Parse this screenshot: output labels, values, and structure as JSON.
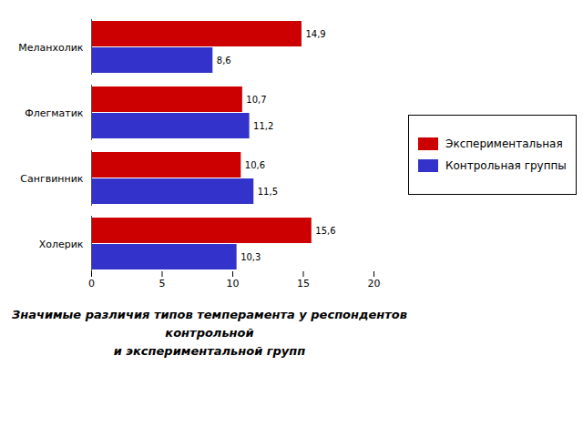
{
  "chart_data": {
    "type": "bar",
    "orientation": "horizontal",
    "categories": [
      "Холерик",
      "Сангвинник",
      "Флегматик",
      "Меланхолик"
    ],
    "series": [
      {
        "name": "Экспериментальная",
        "color": "#cc0000",
        "values": [
          15.6,
          10.6,
          10.7,
          14.9
        ],
        "value_labels": [
          "15,6",
          "10,6",
          "10,7",
          "14,9"
        ]
      },
      {
        "name": "Контрольная группы",
        "color": "#3333cc",
        "values": [
          10.3,
          11.5,
          11.2,
          8.6
        ],
        "value_labels": [
          "10,3",
          "11,5",
          "11,2",
          "8,6"
        ]
      }
    ],
    "xlim": [
      0,
      20
    ],
    "xticks": [
      0,
      5,
      10,
      15,
      20
    ],
    "data_labels": true,
    "legend": "right",
    "grid": false,
    "caption": [
      "Значимые различия типов темперамента у респондентов",
      "контрольной",
      "и экспериментальной групп"
    ]
  }
}
